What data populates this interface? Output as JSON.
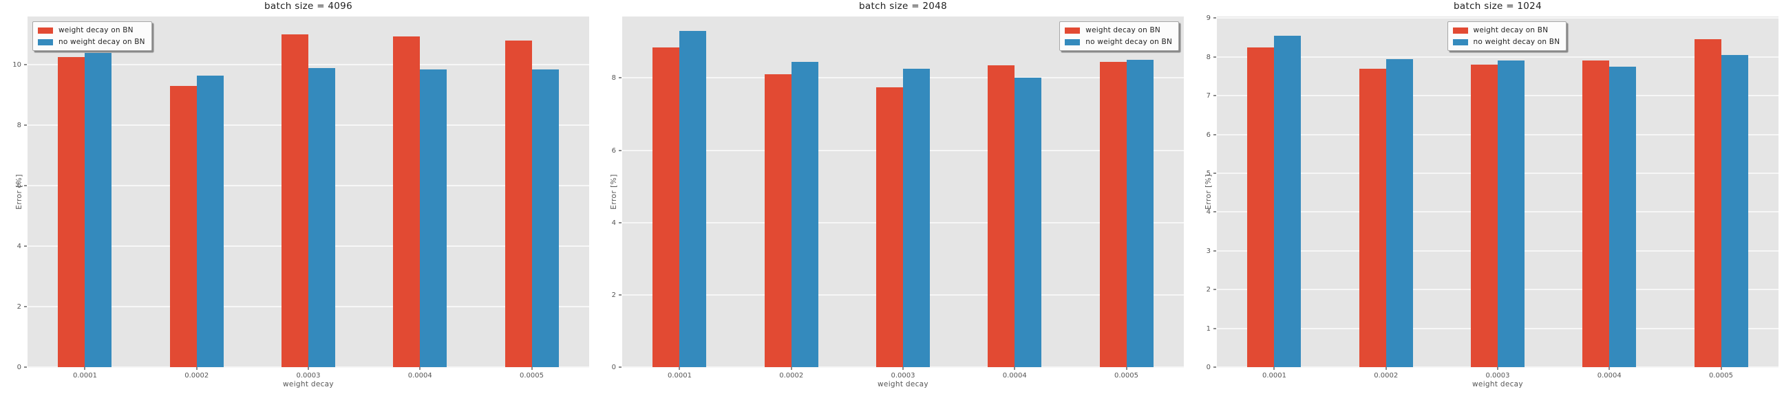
{
  "figure": {
    "background": "#ffffff",
    "plot_background": "#e5e5e5",
    "grid_color": "#f7f7f7",
    "tick_color": "#555555",
    "title_color": "#1f1f1f",
    "accent_red": "#E24A33",
    "accent_blue": "#348ABD"
  },
  "chart_data": [
    {
      "type": "bar",
      "title": "batch size = 4096",
      "xlabel": "weight decay",
      "ylabel": "Error [%]",
      "categories": [
        "0.0001",
        "0.0002",
        "0.0003",
        "0.0004",
        "0.0005"
      ],
      "series": [
        {
          "name": "weight decay on BN",
          "color": "#E24A33",
          "values": [
            10.25,
            9.3,
            11.0,
            10.95,
            10.8
          ]
        },
        {
          "name": "no weight decay on BN",
          "color": "#348ABD",
          "values": [
            10.4,
            9.65,
            9.9,
            9.85,
            9.85
          ]
        }
      ],
      "yticks": [
        0,
        2,
        4,
        6,
        8,
        10
      ],
      "ylim": [
        0,
        11.6
      ],
      "grid": true,
      "legend_position": "upper-left"
    },
    {
      "type": "bar",
      "title": "batch size = 2048",
      "xlabel": "weight decay",
      "ylabel": "Error [%]",
      "categories": [
        "0.0001",
        "0.0002",
        "0.0003",
        "0.0004",
        "0.0005"
      ],
      "series": [
        {
          "name": "weight decay on BN",
          "color": "#E24A33",
          "values": [
            8.85,
            8.1,
            7.75,
            8.35,
            8.45
          ]
        },
        {
          "name": "no weight decay on BN",
          "color": "#348ABD",
          "values": [
            9.3,
            8.45,
            8.25,
            8.0,
            8.5
          ]
        }
      ],
      "yticks": [
        0,
        2,
        4,
        6,
        8
      ],
      "ylim": [
        0,
        9.7
      ],
      "grid": true,
      "legend_position": "upper-right"
    },
    {
      "type": "bar",
      "title": "batch size = 1024",
      "xlabel": "weight decay",
      "ylabel": "Error [%]",
      "categories": [
        "0.0001",
        "0.0002",
        "0.0003",
        "0.0004",
        "0.0005"
      ],
      "series": [
        {
          "name": "weight decay on BN",
          "color": "#E24A33",
          "values": [
            8.25,
            7.7,
            7.8,
            7.9,
            8.45
          ]
        },
        {
          "name": "no weight decay on BN",
          "color": "#348ABD",
          "values": [
            8.55,
            7.95,
            7.9,
            7.75,
            8.05
          ]
        }
      ],
      "yticks": [
        0,
        1,
        2,
        3,
        4,
        5,
        6,
        7,
        8,
        9
      ],
      "ylim": [
        0,
        9.04
      ],
      "grid": true,
      "legend_position": "upper-center"
    }
  ]
}
